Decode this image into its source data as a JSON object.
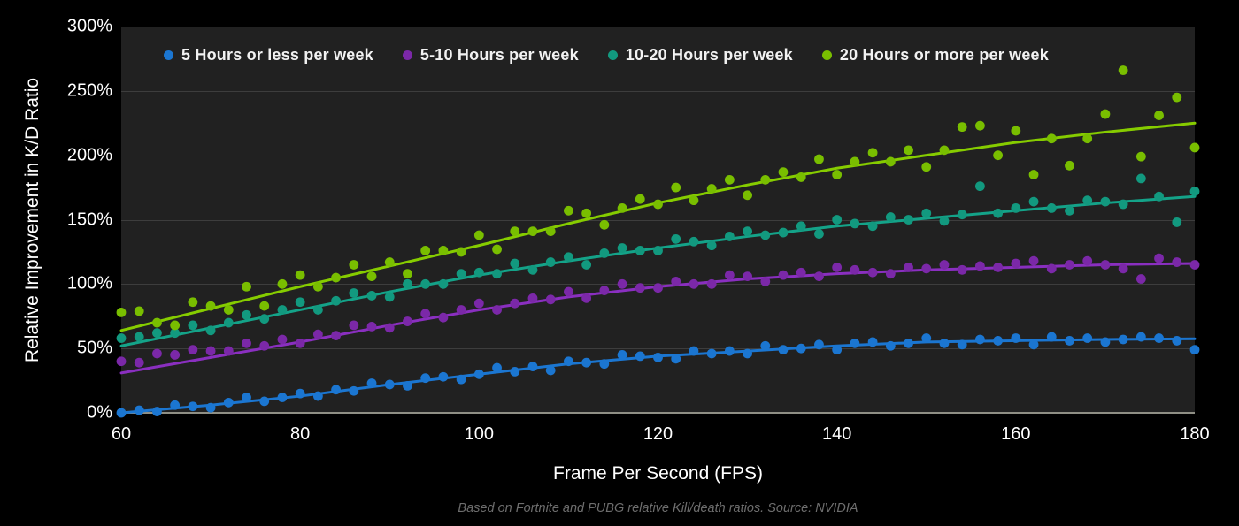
{
  "footer": {
    "text": "Based on Fortnite and PUBG relative Kill/death ratios. Source: NVIDIA"
  },
  "chart_data": {
    "type": "scatter",
    "xlabel": "Frame Per Second (FPS)",
    "ylabel": "Relative Improvement in K/D Ratio",
    "xlim": [
      60,
      180
    ],
    "ylim": [
      0,
      300
    ],
    "grid": "horizontal",
    "legend_position": "top-inside",
    "style": {
      "plot_background": "#212121",
      "page_background": "#000000",
      "grid_color": "#3d3d3d",
      "axis_line_color": "#8f8f85",
      "tick_text_color": "#ffffff",
      "footer_color": "#6e6e6e"
    },
    "x_ticks": [
      {
        "v": 60,
        "label": "60"
      },
      {
        "v": 80,
        "label": "80"
      },
      {
        "v": 100,
        "label": "100"
      },
      {
        "v": 120,
        "label": "120"
      },
      {
        "v": 140,
        "label": "140"
      },
      {
        "v": 160,
        "label": "160"
      },
      {
        "v": 180,
        "label": "180"
      }
    ],
    "y_ticks": [
      {
        "v": 0,
        "label": "0%"
      },
      {
        "v": 50,
        "label": "50%"
      },
      {
        "v": 100,
        "label": "100%"
      },
      {
        "v": 150,
        "label": "150%"
      },
      {
        "v": 200,
        "label": "200%"
      },
      {
        "v": 250,
        "label": "250%"
      },
      {
        "v": 300,
        "label": "300%"
      }
    ],
    "series": [
      {
        "name": "5 Hours or less per week",
        "color": "#1b76d1",
        "line_color": "#1b76d1",
        "trend": [
          [
            60,
            0
          ],
          [
            70,
            6
          ],
          [
            80,
            13
          ],
          [
            90,
            22
          ],
          [
            100,
            30
          ],
          [
            110,
            38
          ],
          [
            120,
            44
          ],
          [
            130,
            48
          ],
          [
            140,
            52
          ],
          [
            150,
            55
          ],
          [
            160,
            56
          ],
          [
            170,
            57
          ],
          [
            180,
            57.5
          ]
        ],
        "points": [
          [
            60,
            0
          ],
          [
            62,
            2
          ],
          [
            64,
            1
          ],
          [
            66,
            6
          ],
          [
            68,
            5
          ],
          [
            70,
            4
          ],
          [
            72,
            8
          ],
          [
            74,
            12
          ],
          [
            76,
            9
          ],
          [
            78,
            12
          ],
          [
            80,
            15
          ],
          [
            82,
            13
          ],
          [
            84,
            18
          ],
          [
            86,
            17
          ],
          [
            88,
            23
          ],
          [
            90,
            22
          ],
          [
            92,
            21
          ],
          [
            94,
            27
          ],
          [
            96,
            28
          ],
          [
            98,
            26
          ],
          [
            100,
            30
          ],
          [
            102,
            35
          ],
          [
            104,
            32
          ],
          [
            106,
            36
          ],
          [
            108,
            33
          ],
          [
            110,
            40
          ],
          [
            112,
            39
          ],
          [
            114,
            38
          ],
          [
            116,
            45
          ],
          [
            118,
            44
          ],
          [
            120,
            43
          ],
          [
            122,
            42
          ],
          [
            124,
            48
          ],
          [
            126,
            46
          ],
          [
            128,
            48
          ],
          [
            130,
            46
          ],
          [
            132,
            52
          ],
          [
            134,
            49
          ],
          [
            136,
            50
          ],
          [
            138,
            53
          ],
          [
            140,
            49
          ],
          [
            142,
            54
          ],
          [
            144,
            55
          ],
          [
            146,
            52
          ],
          [
            148,
            54
          ],
          [
            150,
            58
          ],
          [
            152,
            54
          ],
          [
            154,
            53
          ],
          [
            156,
            57
          ],
          [
            158,
            56
          ],
          [
            160,
            58
          ],
          [
            162,
            53
          ],
          [
            164,
            59
          ],
          [
            166,
            56
          ],
          [
            168,
            58
          ],
          [
            170,
            55
          ],
          [
            172,
            57
          ],
          [
            174,
            59
          ],
          [
            176,
            58
          ],
          [
            178,
            56
          ],
          [
            180,
            49
          ]
        ]
      },
      {
        "name": "5-10 Hours per week",
        "color": "#7b28a8",
        "line_color": "#8a2fc0",
        "trend": [
          [
            60,
            31
          ],
          [
            70,
            43
          ],
          [
            80,
            55
          ],
          [
            90,
            68
          ],
          [
            100,
            80
          ],
          [
            110,
            90
          ],
          [
            120,
            98
          ],
          [
            130,
            104
          ],
          [
            140,
            108
          ],
          [
            150,
            111
          ],
          [
            160,
            113
          ],
          [
            170,
            115
          ],
          [
            180,
            116
          ]
        ],
        "points": [
          [
            60,
            40
          ],
          [
            62,
            39
          ],
          [
            64,
            46
          ],
          [
            66,
            45
          ],
          [
            68,
            49
          ],
          [
            70,
            48
          ],
          [
            72,
            48
          ],
          [
            74,
            54
          ],
          [
            76,
            52
          ],
          [
            78,
            57
          ],
          [
            80,
            54
          ],
          [
            82,
            61
          ],
          [
            84,
            60
          ],
          [
            86,
            68
          ],
          [
            88,
            67
          ],
          [
            90,
            66
          ],
          [
            92,
            71
          ],
          [
            94,
            77
          ],
          [
            96,
            74
          ],
          [
            98,
            80
          ],
          [
            100,
            85
          ],
          [
            102,
            80
          ],
          [
            104,
            85
          ],
          [
            106,
            89
          ],
          [
            108,
            88
          ],
          [
            110,
            94
          ],
          [
            112,
            89
          ],
          [
            114,
            95
          ],
          [
            116,
            100
          ],
          [
            118,
            97
          ],
          [
            120,
            97
          ],
          [
            122,
            102
          ],
          [
            124,
            100
          ],
          [
            126,
            100
          ],
          [
            128,
            107
          ],
          [
            130,
            106
          ],
          [
            132,
            102
          ],
          [
            134,
            107
          ],
          [
            136,
            109
          ],
          [
            138,
            106
          ],
          [
            140,
            113
          ],
          [
            142,
            111
          ],
          [
            144,
            109
          ],
          [
            146,
            108
          ],
          [
            148,
            113
          ],
          [
            150,
            112
          ],
          [
            152,
            115
          ],
          [
            154,
            111
          ],
          [
            156,
            114
          ],
          [
            158,
            113
          ],
          [
            160,
            116
          ],
          [
            162,
            118
          ],
          [
            164,
            112
          ],
          [
            166,
            115
          ],
          [
            168,
            118
          ],
          [
            170,
            115
          ],
          [
            172,
            112
          ],
          [
            174,
            104
          ],
          [
            176,
            120
          ],
          [
            178,
            117
          ],
          [
            180,
            115
          ]
        ]
      },
      {
        "name": "10-20 Hours per week",
        "color": "#12997f",
        "line_color": "#14a389",
        "trend": [
          [
            60,
            52
          ],
          [
            70,
            66
          ],
          [
            80,
            80
          ],
          [
            90,
            94
          ],
          [
            100,
            107
          ],
          [
            110,
            118
          ],
          [
            120,
            128
          ],
          [
            130,
            137
          ],
          [
            140,
            145
          ],
          [
            150,
            151
          ],
          [
            160,
            157
          ],
          [
            170,
            163
          ],
          [
            180,
            168
          ]
        ],
        "points": [
          [
            60,
            58
          ],
          [
            62,
            59
          ],
          [
            64,
            62
          ],
          [
            66,
            62
          ],
          [
            68,
            68
          ],
          [
            70,
            64
          ],
          [
            72,
            70
          ],
          [
            74,
            76
          ],
          [
            76,
            73
          ],
          [
            78,
            80
          ],
          [
            80,
            86
          ],
          [
            82,
            80
          ],
          [
            84,
            87
          ],
          [
            86,
            93
          ],
          [
            88,
            91
          ],
          [
            90,
            90
          ],
          [
            92,
            100
          ],
          [
            94,
            100
          ],
          [
            96,
            100
          ],
          [
            98,
            108
          ],
          [
            100,
            109
          ],
          [
            102,
            108
          ],
          [
            104,
            116
          ],
          [
            106,
            111
          ],
          [
            108,
            117
          ],
          [
            110,
            121
          ],
          [
            112,
            115
          ],
          [
            114,
            124
          ],
          [
            116,
            128
          ],
          [
            118,
            126
          ],
          [
            120,
            126
          ],
          [
            122,
            135
          ],
          [
            124,
            133
          ],
          [
            126,
            130
          ],
          [
            128,
            137
          ],
          [
            130,
            141
          ],
          [
            132,
            138
          ],
          [
            134,
            140
          ],
          [
            136,
            145
          ],
          [
            138,
            139
          ],
          [
            140,
            150
          ],
          [
            142,
            147
          ],
          [
            144,
            145
          ],
          [
            146,
            152
          ],
          [
            148,
            150
          ],
          [
            150,
            155
          ],
          [
            152,
            149
          ],
          [
            154,
            154
          ],
          [
            156,
            176
          ],
          [
            158,
            155
          ],
          [
            160,
            159
          ],
          [
            162,
            164
          ],
          [
            164,
            159
          ],
          [
            166,
            157
          ],
          [
            168,
            165
          ],
          [
            170,
            164
          ],
          [
            172,
            162
          ],
          [
            174,
            182
          ],
          [
            176,
            168
          ],
          [
            178,
            148
          ],
          [
            180,
            172
          ]
        ]
      },
      {
        "name": "20 Hours or more per week",
        "color": "#79be00",
        "line_color": "#86cc00",
        "trend": [
          [
            60,
            64
          ],
          [
            70,
            81
          ],
          [
            80,
            98
          ],
          [
            90,
            114
          ],
          [
            100,
            130
          ],
          [
            110,
            147
          ],
          [
            120,
            163
          ],
          [
            130,
            177
          ],
          [
            140,
            190
          ],
          [
            150,
            200
          ],
          [
            160,
            210
          ],
          [
            170,
            218
          ],
          [
            180,
            225
          ]
        ],
        "points": [
          [
            60,
            78
          ],
          [
            62,
            79
          ],
          [
            64,
            70
          ],
          [
            66,
            68
          ],
          [
            68,
            86
          ],
          [
            70,
            83
          ],
          [
            72,
            80
          ],
          [
            74,
            98
          ],
          [
            76,
            83
          ],
          [
            78,
            100
          ],
          [
            80,
            107
          ],
          [
            82,
            98
          ],
          [
            84,
            105
          ],
          [
            86,
            115
          ],
          [
            88,
            106
          ],
          [
            90,
            117
          ],
          [
            92,
            108
          ],
          [
            94,
            126
          ],
          [
            96,
            126
          ],
          [
            98,
            125
          ],
          [
            100,
            138
          ],
          [
            102,
            127
          ],
          [
            104,
            141
          ],
          [
            106,
            141
          ],
          [
            108,
            141
          ],
          [
            110,
            157
          ],
          [
            112,
            155
          ],
          [
            114,
            146
          ],
          [
            116,
            159
          ],
          [
            118,
            166
          ],
          [
            120,
            162
          ],
          [
            122,
            175
          ],
          [
            124,
            165
          ],
          [
            126,
            174
          ],
          [
            128,
            181
          ],
          [
            130,
            169
          ],
          [
            132,
            181
          ],
          [
            134,
            187
          ],
          [
            136,
            183
          ],
          [
            138,
            197
          ],
          [
            140,
            185
          ],
          [
            142,
            195
          ],
          [
            144,
            202
          ],
          [
            146,
            195
          ],
          [
            148,
            204
          ],
          [
            150,
            191
          ],
          [
            152,
            204
          ],
          [
            154,
            222
          ],
          [
            156,
            223
          ],
          [
            158,
            200
          ],
          [
            160,
            219
          ],
          [
            162,
            185
          ],
          [
            164,
            213
          ],
          [
            166,
            192
          ],
          [
            168,
            213
          ],
          [
            170,
            232
          ],
          [
            172,
            266
          ],
          [
            174,
            199
          ],
          [
            176,
            231
          ],
          [
            178,
            245
          ],
          [
            180,
            206
          ]
        ]
      }
    ]
  }
}
